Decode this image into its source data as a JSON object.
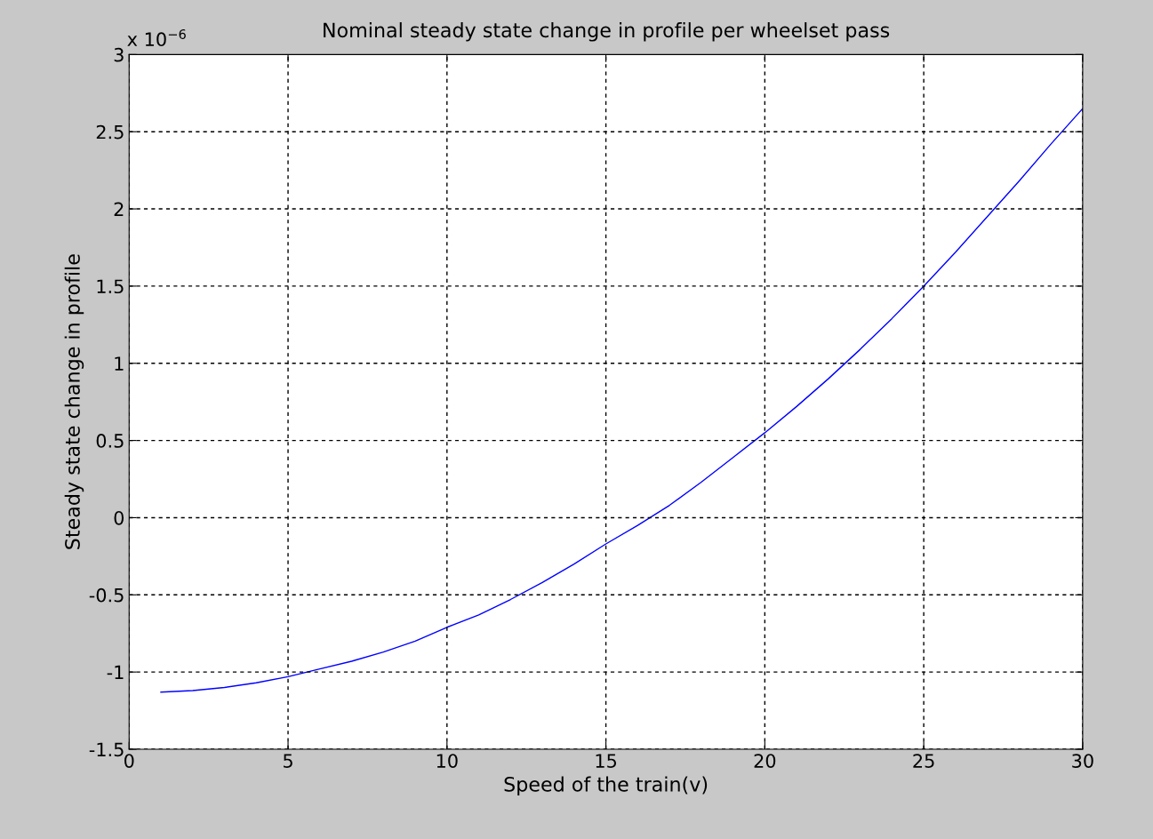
{
  "chart_data": {
    "type": "line",
    "title": "Nominal steady state change in profile per wheelset pass",
    "xlabel": "Speed of the train(v)",
    "ylabel": "Steady state change in profile",
    "annotations": [
      "x 10$^{−6}$"
    ],
    "x": [
      1,
      2,
      3,
      4,
      5,
      6,
      7,
      8,
      9,
      10,
      11,
      12,
      13,
      14,
      15,
      16,
      17,
      18,
      19,
      20,
      21,
      22,
      23,
      24,
      25,
      26,
      27,
      28,
      29,
      30
    ],
    "series": [
      {
        "color": "#0000ff",
        "values": [
          -1.13,
          -1.12,
          -1.1,
          -1.07,
          -1.03,
          -0.98,
          -0.93,
          -0.87,
          -0.8,
          -0.71,
          -0.63,
          -0.53,
          -0.42,
          -0.3,
          -0.17,
          -0.05,
          0.08,
          0.23,
          0.39,
          0.55,
          0.72,
          0.9,
          1.09,
          1.29,
          1.5,
          1.72,
          1.95,
          2.18,
          2.42,
          2.65
        ]
      }
    ],
    "xlim": [
      0,
      30
    ],
    "xticks": [
      0,
      5,
      10,
      15,
      20,
      25,
      30
    ],
    "ylim": [
      -1.5,
      3
    ],
    "yticks": [
      -1.5,
      -1,
      -0.5,
      0,
      0.5,
      1,
      1.5,
      2,
      2.5,
      3
    ],
    "grid": true,
    "line_style": "solid",
    "marker": "none",
    "legend": false
  }
}
